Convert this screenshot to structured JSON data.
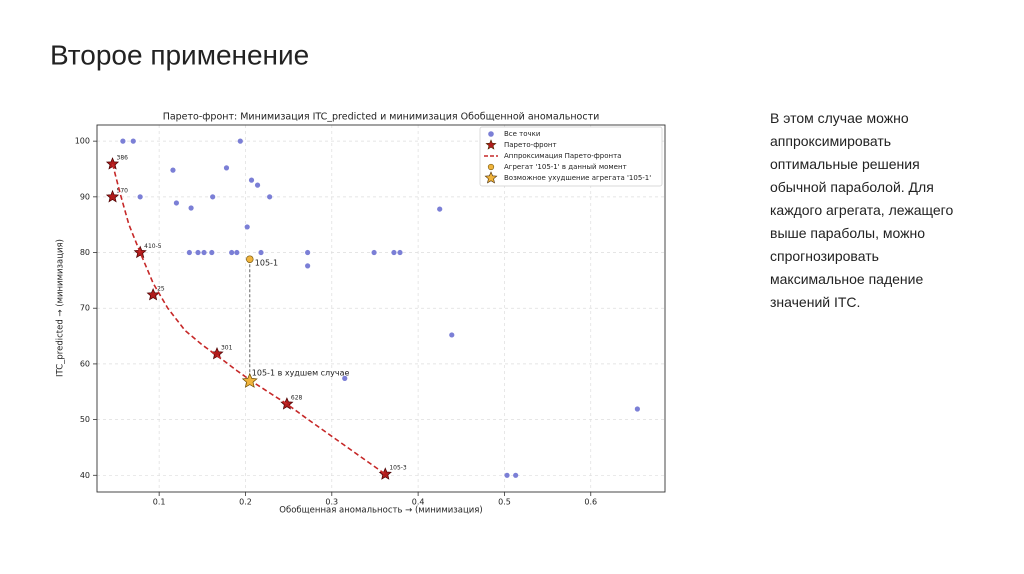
{
  "slide_title": "Второе применение",
  "body_text": "В этом случае можно аппроксимировать оптимальные решения обычной параболой. Для каждого агрегата, лежащего выше параболы, можно спрогнозировать максимальное падение значений ITC.",
  "chart_data": {
    "type": "scatter",
    "title": "Парето-фронт: Минимизация ITC_predicted и минимизация Обобщенной аномальности",
    "x_label": "Обобщенная аномальность → (минимизация)",
    "y_label": "ITC_predicted → (минимизация)",
    "xlim": [
      0.028,
      0.686
    ],
    "ylim": [
      37,
      102.9
    ],
    "xticks": [
      0.1,
      0.2,
      0.3,
      0.4,
      0.5,
      0.6
    ],
    "yticks": [
      40,
      50,
      60,
      70,
      80,
      90,
      100
    ],
    "grid": true,
    "legend": "upper right",
    "series": [
      {
        "name": "Все точки",
        "color": "#7b7fd6",
        "marker": "circle",
        "x": [
          0.058,
          0.07,
          0.194,
          0.116,
          0.178,
          0.207,
          0.214,
          0.078,
          0.162,
          0.228,
          0.12,
          0.137,
          0.425,
          0.202,
          0.135,
          0.145,
          0.152,
          0.161,
          0.184,
          0.19,
          0.218,
          0.272,
          0.349,
          0.372,
          0.379,
          0.272,
          0.439,
          0.315,
          0.654,
          0.503,
          0.513
        ],
        "values": [
          100,
          100,
          100,
          94.8,
          95.2,
          93,
          92.1,
          90,
          90,
          90,
          88.9,
          88,
          87.8,
          84.6,
          80,
          80,
          80,
          80,
          80,
          80,
          80,
          80,
          80,
          80,
          80,
          77.6,
          65.2,
          57.4,
          51.9,
          40,
          40
        ]
      },
      {
        "name": "Парето-фронт",
        "color": "#b01c1c",
        "marker": "star",
        "x": [
          0.046,
          0.046,
          0.078,
          0.093,
          0.167,
          0.248,
          0.362
        ],
        "values": [
          95.9,
          90,
          80,
          72.4,
          61.8,
          52.8,
          40.2
        ],
        "point_labels": [
          "386",
          "570",
          "410-5",
          "25",
          "301",
          "628",
          "105-3"
        ]
      },
      {
        "name": "Аппроксимация Парето-фронта",
        "color": "#c62828",
        "marker": "dashed-line",
        "x": [
          0.046,
          0.055,
          0.065,
          0.078,
          0.093,
          0.11,
          0.13,
          0.15,
          0.167,
          0.19,
          0.21,
          0.23,
          0.248,
          0.27,
          0.3,
          0.33,
          0.362
        ],
        "values": [
          95.9,
          90.5,
          85,
          80,
          74.5,
          70,
          66,
          63.4,
          61.5,
          58.8,
          56.6,
          54.6,
          52.8,
          50.3,
          47,
          43.7,
          40.2
        ]
      },
      {
        "name": "Агрегат '105-1' в данный момент",
        "color": "#f0b43c",
        "marker": "circle",
        "x": [
          0.205
        ],
        "values": [
          78.8
        ],
        "point_labels": [
          "105-1"
        ]
      },
      {
        "name": "Возможное ухудшение агрегата '105-1'",
        "color": "#f0b43c",
        "marker": "star",
        "x": [
          0.205
        ],
        "values": [
          56.9
        ],
        "point_labels": [
          "105-1 в худшем случае"
        ]
      }
    ]
  }
}
